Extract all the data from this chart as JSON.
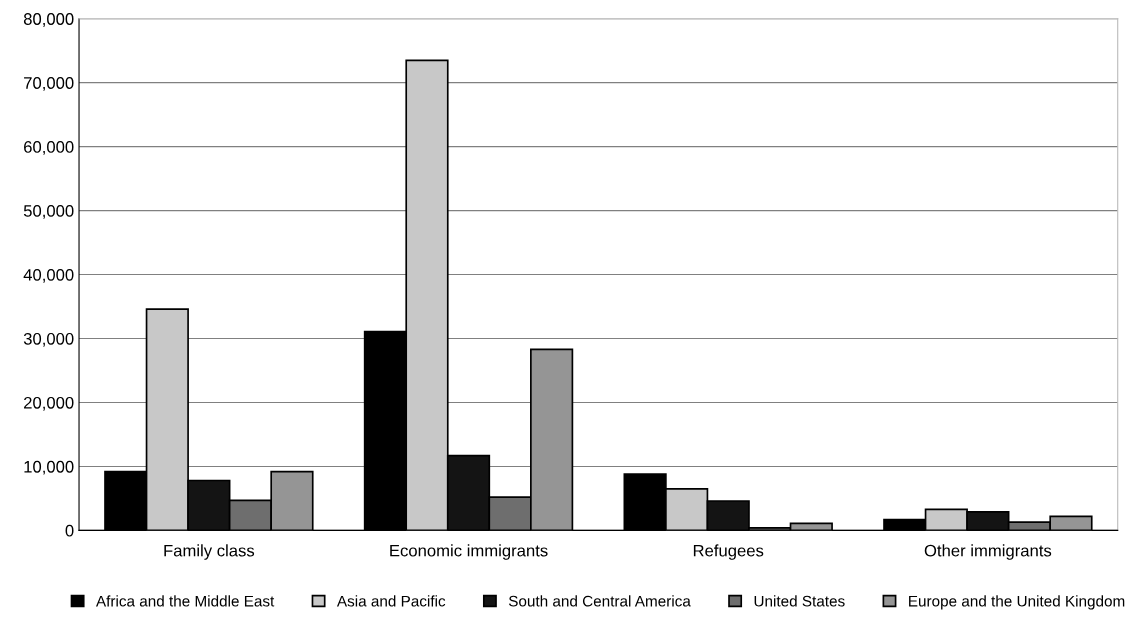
{
  "chart_data": {
    "type": "bar",
    "categories": [
      "Family class",
      "Economic immigrants",
      "Refugees",
      "Other immigrants"
    ],
    "series": [
      {
        "name": "Africa and the Middle East",
        "color": "#000000",
        "values": [
          9200,
          31100,
          8800,
          1700
        ]
      },
      {
        "name": "Asia and Pacific",
        "color": "#c8c8c8",
        "values": [
          34600,
          73500,
          6500,
          3300
        ]
      },
      {
        "name": "South and Central America",
        "color": "#141414",
        "values": [
          7800,
          11700,
          4600,
          2900
        ]
      },
      {
        "name": "United States",
        "color": "#6e6e6e",
        "values": [
          4700,
          5200,
          400,
          1300
        ]
      },
      {
        "name": "Europe and the United Kingdom",
        "color": "#959595",
        "values": [
          9200,
          28300,
          1100,
          2200
        ]
      }
    ],
    "ylim": [
      0,
      80000
    ],
    "yticks": [
      {
        "value": 0,
        "label": "0"
      },
      {
        "value": 10000,
        "label": "10,000"
      },
      {
        "value": 20000,
        "label": "20,000"
      },
      {
        "value": 30000,
        "label": "30,000"
      },
      {
        "value": 40000,
        "label": "40,000"
      },
      {
        "value": 50000,
        "label": "50,000"
      },
      {
        "value": 60000,
        "label": "60,000"
      },
      {
        "value": 70000,
        "label": "70,000"
      },
      {
        "value": 80000,
        "label": "80,000"
      }
    ],
    "grid": "y",
    "legend": "bottom"
  }
}
